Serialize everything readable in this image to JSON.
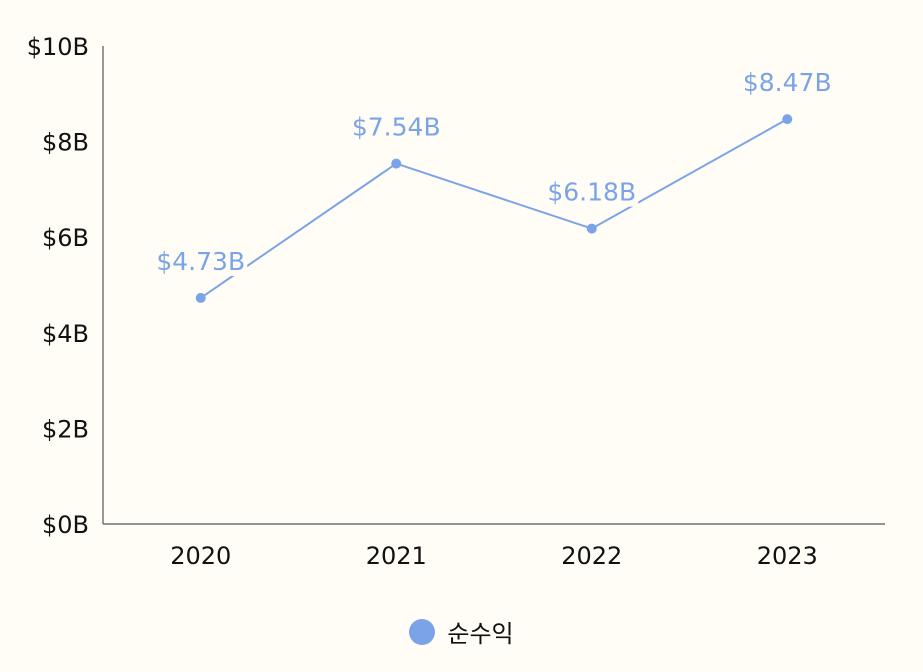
{
  "chart_data": {
    "type": "line",
    "categories": [
      "2020",
      "2021",
      "2022",
      "2023"
    ],
    "series": [
      {
        "name": "순수익",
        "values": [
          4.73,
          7.54,
          6.18,
          8.47
        ],
        "data_labels": [
          "$4.73B",
          "$7.54B",
          "$6.18B",
          "$8.47B"
        ]
      }
    ],
    "ylim": [
      0,
      10
    ],
    "y_ticks": [
      0,
      2,
      4,
      6,
      8,
      10
    ],
    "y_tick_labels": [
      "$0B",
      "$2B",
      "$4B",
      "$6B",
      "$8B",
      "$10B"
    ],
    "grid": false,
    "legend_position": "bottom-center",
    "colors": {
      "series": "#7ba4e8",
      "axis": "#555555",
      "background": "#fffdf6"
    }
  }
}
